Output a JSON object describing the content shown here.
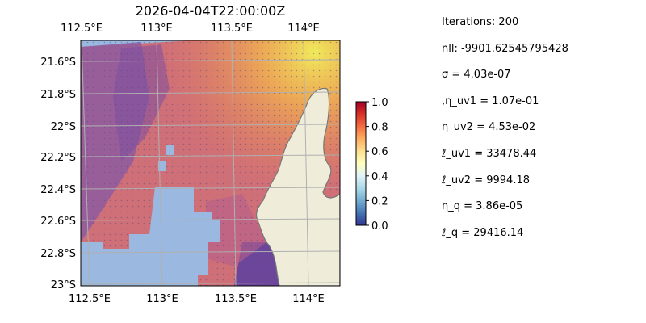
{
  "title": "2026-04-04T22:00:00Z",
  "map": {
    "lon_ticks": [
      "112.5°E",
      "113°E",
      "113.5°E",
      "114°E"
    ],
    "lat_ticks": [
      "21.6°S",
      "21.8°S",
      "22°S",
      "22.2°S",
      "22.4°S",
      "22.6°S",
      "22.8°S",
      "23°S"
    ],
    "lon_range": [
      112.5,
      114.2
    ],
    "lat_range": [
      -23.0,
      -21.5
    ],
    "colors": {
      "ocean": "#9ab8e0",
      "land": "#efedda",
      "coast": "#777777",
      "grid": "#b0b0b0"
    }
  },
  "colorbar": {
    "ticks": [
      "1.0",
      "0.8",
      "0.6",
      "0.4",
      "0.2",
      "0.0"
    ],
    "range": [
      0.0,
      1.0
    ],
    "colormap": "RdYlBu_r"
  },
  "stats": [
    "Iterations: 200",
    "nll: -9901.62545795428",
    "σ = 4.03e-07",
    ",η_uv1 = 1.07e-01",
    "η_uv2 = 4.53e-02",
    "ℓ_uv1 = 33478.44",
    "ℓ_uv2 = 9994.18",
    "η_q = 3.86e-05",
    "ℓ_q = 29416.14"
  ]
}
